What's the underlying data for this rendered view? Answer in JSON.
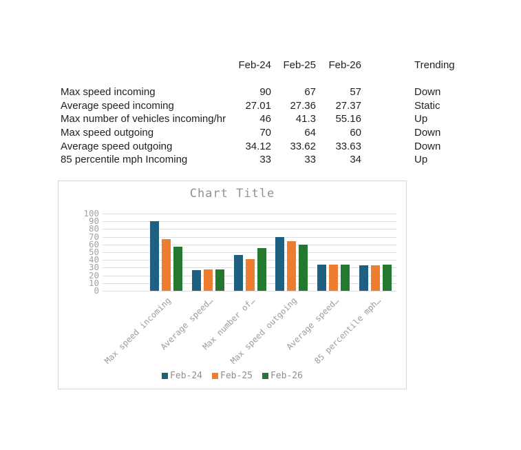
{
  "table": {
    "columns": [
      "Feb-24",
      "Feb-25",
      "Feb-26"
    ],
    "trending_label": "Trending",
    "rows": [
      {
        "label": "Max speed incoming",
        "values": [
          "90",
          "67",
          "57"
        ],
        "trending": "Down"
      },
      {
        "label": "Average speed incoming",
        "values": [
          "27.01",
          "27.36",
          "27.37"
        ],
        "trending": "Static"
      },
      {
        "label": "Max number of vehicles incoming/hr",
        "values": [
          "46",
          "41.3",
          "55.16"
        ],
        "trending": "Up"
      },
      {
        "label": "Max speed outgoing",
        "values": [
          "70",
          "64",
          "60"
        ],
        "trending": "Down"
      },
      {
        "label": "Average speed outgoing",
        "values": [
          "34.12",
          "33.62",
          "33.63"
        ],
        "trending": "Down"
      },
      {
        "label": "85 percentile mph Incoming",
        "values": [
          "33",
          "33",
          "34"
        ],
        "trending": "Up"
      }
    ]
  },
  "chart_data": {
    "type": "bar",
    "title": "Chart Title",
    "categories": [
      "Max speed incoming",
      "Average speed incoming",
      "Max number of vehicles incoming/hr",
      "Max speed outgoing",
      "Average speed outgoing",
      "85 percentile mph Incoming"
    ],
    "category_tick_labels": [
      "Max speed incoming",
      "Average speed…",
      "Max number of…",
      "Max speed outgoing",
      "Average speed…",
      "85 percentile mph…"
    ],
    "series": [
      {
        "name": "Feb-24",
        "color": "#1F5F7F",
        "values": [
          90,
          27.01,
          46,
          70,
          34.12,
          33
        ]
      },
      {
        "name": "Feb-25",
        "color": "#ED7D31",
        "values": [
          67,
          27.36,
          41.3,
          64,
          33.62,
          33
        ]
      },
      {
        "name": "Feb-26",
        "color": "#24782F",
        "values": [
          57,
          27.37,
          55.16,
          60,
          33.63,
          34
        ]
      }
    ],
    "ylim": [
      0,
      100
    ],
    "yticks": [
      0,
      10,
      20,
      30,
      40,
      50,
      60,
      70,
      80,
      90,
      100
    ],
    "grid": true,
    "legend_position": "bottom",
    "axis_text_color": "#a3a3a3",
    "gridline_color": "#dedede",
    "title_color": "#919191"
  }
}
